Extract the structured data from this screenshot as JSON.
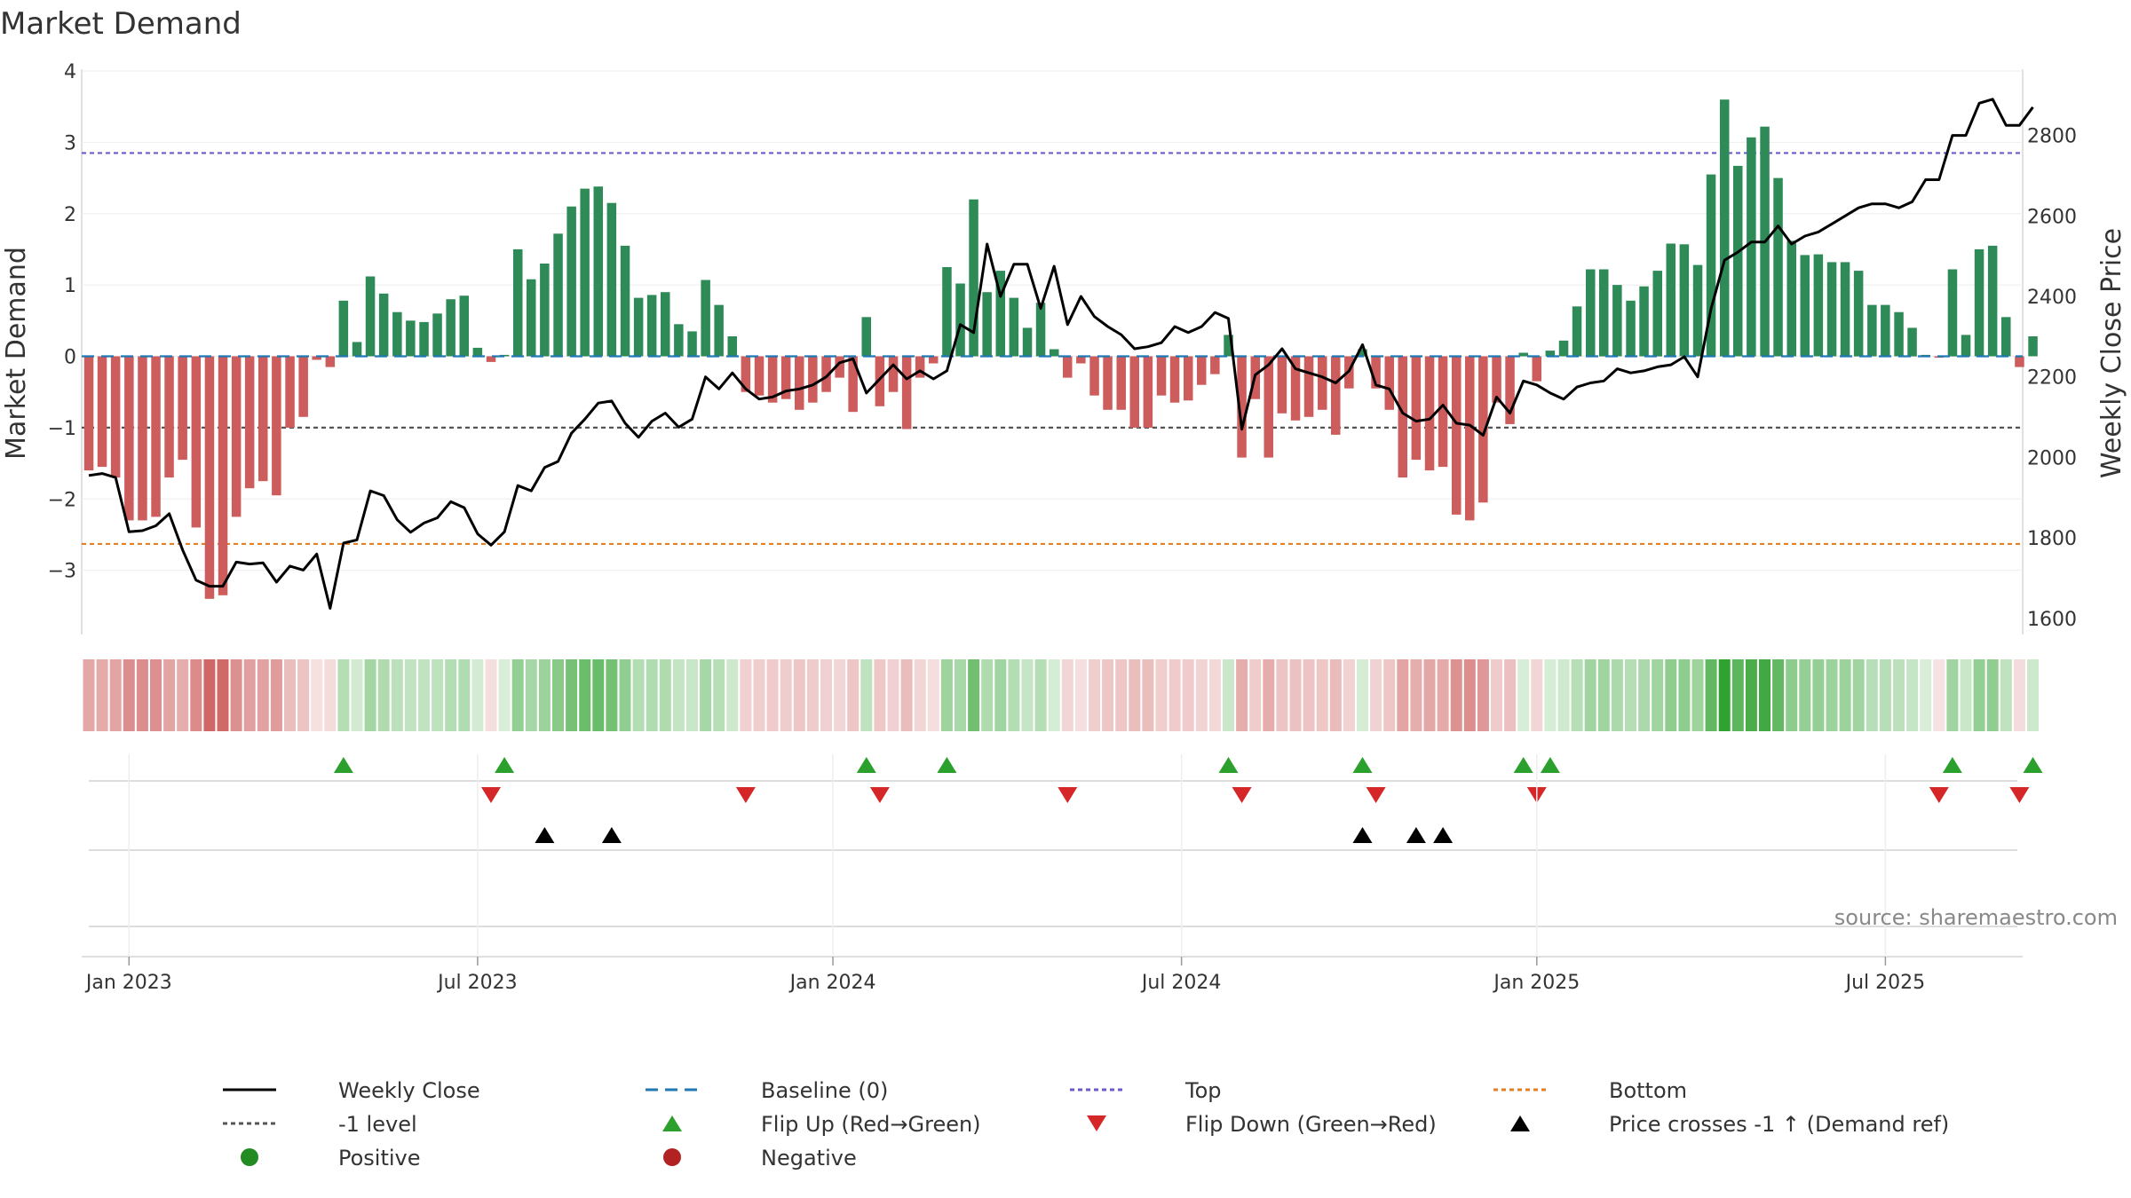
{
  "colors": {
    "bar_pos": "#2e8b57",
    "bar_neg": "#cd5c5c",
    "price": "#000000",
    "baseline": "#1f77b4",
    "top": "#6a5acd",
    "bottom": "#e67e22",
    "neg_level": "#555555",
    "flip_up": "#2ca02c",
    "flip_down": "#d62728",
    "cross": "#000000",
    "pos_dot": "#228b22",
    "neg_dot": "#b22222"
  },
  "chart_data": {
    "type": "bar+line",
    "title": "Market Demand",
    "ylabel_left": "Market Demand",
    "ylabel_right": "Weekly Close Price",
    "source": "source: sharemaestro.com",
    "left_axis": {
      "range": [
        -3.9,
        4.0
      ],
      "ticks": [
        -3,
        -2,
        -1,
        0,
        1,
        2,
        3,
        4
      ],
      "tick_labels": [
        "−3",
        "−2",
        "−1",
        "0",
        "1",
        "2",
        "3",
        "4"
      ]
    },
    "right_axis": {
      "range": [
        1560,
        2960
      ],
      "ticks": [
        1600,
        1800,
        2000,
        2200,
        2400,
        2600,
        2800
      ],
      "tick_labels": [
        "1600",
        "1800",
        "2000",
        "2200",
        "2400",
        "2600",
        "2800"
      ]
    },
    "x_ticks": [
      {
        "week": 3,
        "label": "Jan 2023"
      },
      {
        "week": 29,
        "label": "Jul 2023"
      },
      {
        "week": 55.5,
        "label": "Jan 2024"
      },
      {
        "week": 81.5,
        "label": "Jul 2024"
      },
      {
        "week": 108,
        "label": "Jan 2025"
      },
      {
        "week": 134,
        "label": "Jul 2025"
      }
    ],
    "reference_lines": {
      "baseline": 0,
      "top": 2.85,
      "bottom": -2.63,
      "neg_level": -1
    },
    "demand": [
      -1.6,
      -1.55,
      -1.7,
      -2.3,
      -2.3,
      -2.25,
      -1.7,
      -1.45,
      -2.4,
      -3.4,
      -3.35,
      -2.25,
      -1.85,
      -1.75,
      -1.95,
      -1.0,
      -0.85,
      -0.05,
      -0.15,
      0.78,
      0.2,
      1.12,
      0.88,
      0.62,
      0.5,
      0.48,
      0.6,
      0.8,
      0.85,
      0.12,
      -0.08,
      0.02,
      1.5,
      1.08,
      1.3,
      1.72,
      2.1,
      2.35,
      2.38,
      2.15,
      1.55,
      0.82,
      0.86,
      0.9,
      0.45,
      0.35,
      1.07,
      0.72,
      0.28,
      -0.5,
      -0.55,
      -0.65,
      -0.6,
      -0.75,
      -0.65,
      -0.5,
      -0.3,
      -0.78,
      0.55,
      -0.7,
      -0.5,
      -1.02,
      -0.3,
      -0.1,
      1.25,
      1.02,
      2.2,
      0.9,
      1.2,
      0.82,
      0.4,
      0.75,
      0.1,
      -0.3,
      -0.1,
      -0.55,
      -0.75,
      -0.75,
      -1.0,
      -1.0,
      -0.55,
      -0.65,
      -0.62,
      -0.4,
      -0.25,
      0.3,
      -1.42,
      -0.6,
      -1.42,
      -0.8,
      -0.9,
      -0.85,
      -0.75,
      -1.1,
      -0.45,
      0.1,
      -0.45,
      -0.75,
      -1.7,
      -1.45,
      -1.6,
      -1.55,
      -2.22,
      -2.3,
      -2.05,
      -0.65,
      -0.95,
      0.05,
      -0.35,
      0.08,
      0.22,
      0.7,
      1.22,
      1.22,
      1.0,
      0.78,
      0.98,
      1.2,
      1.58,
      1.57,
      1.28,
      2.55,
      3.6,
      2.67,
      3.07,
      3.22,
      2.5,
      1.62,
      1.42,
      1.43,
      1.32,
      1.32,
      1.2,
      0.72,
      0.72,
      0.62,
      0.4,
      0.02,
      -0.02,
      1.22,
      0.3,
      1.5,
      1.55,
      0.55,
      -0.15,
      0.28
    ],
    "close": [
      1955,
      1960,
      1950,
      1815,
      1818,
      1830,
      1860,
      1770,
      1695,
      1680,
      1680,
      1740,
      1735,
      1738,
      1690,
      1730,
      1720,
      1760,
      1625,
      1787,
      1795,
      1917,
      1905,
      1845,
      1814,
      1837,
      1850,
      1890,
      1875,
      1810,
      1782,
      1815,
      1930,
      1917,
      1975,
      1990,
      2060,
      2095,
      2135,
      2140,
      2085,
      2050,
      2090,
      2110,
      2075,
      2095,
      2200,
      2170,
      2210,
      2170,
      2145,
      2150,
      2165,
      2170,
      2180,
      2200,
      2235,
      2245,
      2160,
      2195,
      2230,
      2195,
      2215,
      2195,
      2215,
      2330,
      2310,
      2530,
      2400,
      2480,
      2480,
      2370,
      2475,
      2330,
      2400,
      2350,
      2325,
      2305,
      2270,
      2275,
      2285,
      2325,
      2310,
      2325,
      2360,
      2345,
      2070,
      2205,
      2230,
      2270,
      2220,
      2210,
      2200,
      2185,
      2215,
      2280,
      2180,
      2170,
      2110,
      2090,
      2095,
      2130,
      2085,
      2080,
      2055,
      2150,
      2110,
      2190,
      2180,
      2160,
      2145,
      2175,
      2185,
      2190,
      2220,
      2210,
      2215,
      2225,
      2230,
      2250,
      2200,
      2370,
      2490,
      2510,
      2535,
      2535,
      2575,
      2530,
      2550,
      2560,
      2580,
      2600,
      2620,
      2630,
      2630,
      2620,
      2635,
      2690,
      2690,
      2800,
      2800,
      2880,
      2890,
      2825,
      2825,
      2870
    ]
  },
  "legend": [
    {
      "label": "Weekly Close",
      "kind": "line",
      "color": "#000000"
    },
    {
      "label": "Baseline (0)",
      "kind": "dash",
      "color": "#1f77b4"
    },
    {
      "label": "Top",
      "kind": "dot",
      "color": "#6a5acd"
    },
    {
      "label": "Bottom",
      "kind": "dot",
      "color": "#e67e22"
    },
    {
      "label": "-1 level",
      "kind": "dot",
      "color": "#555555"
    },
    {
      "label": "Flip Up (Red→Green)",
      "kind": "tri-up",
      "color": "#2ca02c"
    },
    {
      "label": "Flip Down (Green→Red)",
      "kind": "tri-down",
      "color": "#d62728"
    },
    {
      "label": "Price crosses -1 ↑ (Demand ref)",
      "kind": "tri-up",
      "color": "#000000"
    },
    {
      "label": "Positive",
      "kind": "circle",
      "color": "#228b22"
    },
    {
      "label": "Negative",
      "kind": "circle",
      "color": "#b22222"
    }
  ]
}
